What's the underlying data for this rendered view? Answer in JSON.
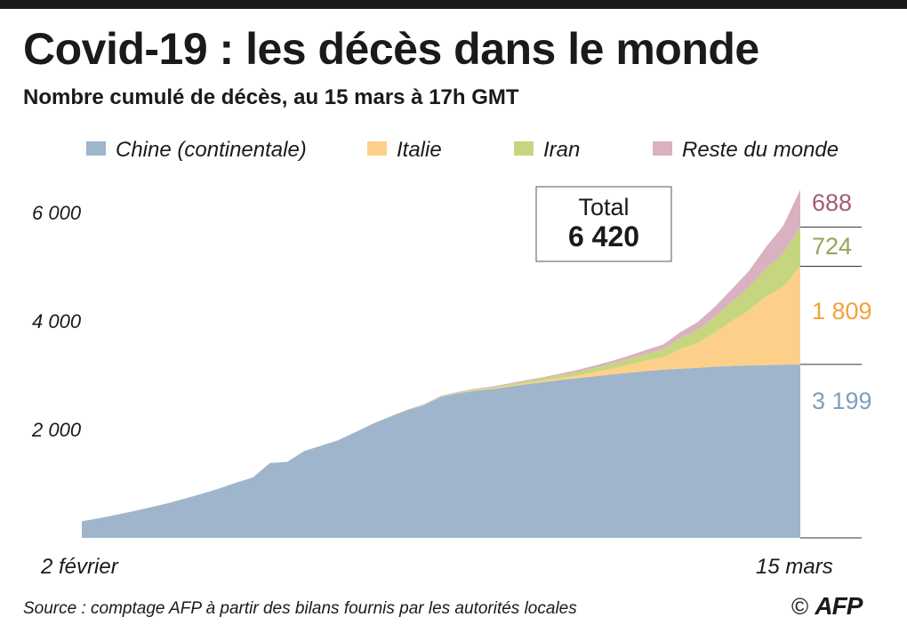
{
  "header": {
    "title": "Covid-19 : les décès dans le monde",
    "subtitle": "Nombre cumulé de décès, au 15 mars à 17h GMT"
  },
  "footer": {
    "source": "Source : comptage AFP à partir des bilans fournis par les autorités locales",
    "copyright": "©",
    "logo": "AFP"
  },
  "colors": {
    "chine": "#9fb5cb",
    "italie": "#fdd08a",
    "iran": "#c6d67f",
    "reste": "#d9b1c1",
    "chine_label": "#7f9fbc",
    "italie_label": "#f1a23a",
    "iran_label": "#93a55a",
    "reste_label": "#a45b78"
  },
  "total_box": {
    "label": "Total",
    "value": "6 420"
  },
  "end_labels": [
    {
      "series": "Reste du monde",
      "text": "688"
    },
    {
      "series": "Iran",
      "text": "724"
    },
    {
      "series": "Italie",
      "text": "1 809"
    },
    {
      "series": "Chine (continentale)",
      "text": "3 199"
    }
  ],
  "chart_data": {
    "type": "area",
    "stacked": true,
    "x_tick_labels": [
      "2 février",
      "15 mars"
    ],
    "y_tick_labels": [
      "2 000",
      "4 000",
      "6 000"
    ],
    "y_ticks": [
      2000,
      4000,
      6000
    ],
    "ylim": [
      0,
      6600
    ],
    "x": [
      "2020-02-02",
      "2020-02-03",
      "2020-02-04",
      "2020-02-05",
      "2020-02-06",
      "2020-02-07",
      "2020-02-08",
      "2020-02-09",
      "2020-02-10",
      "2020-02-11",
      "2020-02-12",
      "2020-02-13",
      "2020-02-14",
      "2020-02-15",
      "2020-02-16",
      "2020-02-17",
      "2020-02-18",
      "2020-02-19",
      "2020-02-20",
      "2020-02-21",
      "2020-02-22",
      "2020-02-23",
      "2020-02-24",
      "2020-02-25",
      "2020-02-26",
      "2020-02-27",
      "2020-02-28",
      "2020-02-29",
      "2020-03-01",
      "2020-03-02",
      "2020-03-03",
      "2020-03-04",
      "2020-03-05",
      "2020-03-06",
      "2020-03-07",
      "2020-03-08",
      "2020-03-09",
      "2020-03-10",
      "2020-03-11",
      "2020-03-12",
      "2020-03-13",
      "2020-03-14",
      "2020-03-15"
    ],
    "legend": {
      "position": "top"
    },
    "series": [
      {
        "name": "Chine (continentale)",
        "values": [
          305,
          361,
          425,
          490,
          563,
          636,
          722,
          811,
          908,
          1016,
          1113,
          1380,
          1400,
          1600,
          1700,
          1800,
          1950,
          2100,
          2230,
          2350,
          2450,
          2600,
          2665,
          2715,
          2745,
          2790,
          2835,
          2870,
          2915,
          2945,
          2980,
          3015,
          3045,
          3075,
          3100,
          3120,
          3136,
          3155,
          3170,
          3180,
          3185,
          3194,
          3199
        ]
      },
      {
        "name": "Italie",
        "values": [
          0,
          0,
          0,
          0,
          0,
          0,
          0,
          0,
          0,
          0,
          0,
          0,
          0,
          0,
          0,
          0,
          0,
          0,
          0,
          2,
          3,
          5,
          7,
          10,
          12,
          17,
          21,
          29,
          34,
          52,
          79,
          107,
          148,
          197,
          233,
          366,
          463,
          631,
          827,
          1016,
          1266,
          1441,
          1809
        ]
      },
      {
        "name": "Iran",
        "values": [
          0,
          0,
          0,
          0,
          0,
          0,
          0,
          0,
          0,
          0,
          0,
          0,
          0,
          0,
          0,
          0,
          0,
          1,
          2,
          4,
          5,
          8,
          12,
          16,
          19,
          26,
          34,
          43,
          54,
          66,
          77,
          92,
          107,
          124,
          145,
          194,
          237,
          291,
          354,
          429,
          514,
          611,
          724
        ]
      },
      {
        "name": "Reste du monde",
        "values": [
          1,
          1,
          1,
          1,
          1,
          1,
          1,
          1,
          1,
          1,
          1,
          1,
          2,
          2,
          2,
          3,
          3,
          4,
          5,
          6,
          7,
          8,
          10,
          12,
          14,
          17,
          20,
          24,
          28,
          35,
          42,
          50,
          60,
          72,
          90,
          115,
          145,
          180,
          235,
          300,
          400,
          510,
          688
        ]
      }
    ]
  }
}
